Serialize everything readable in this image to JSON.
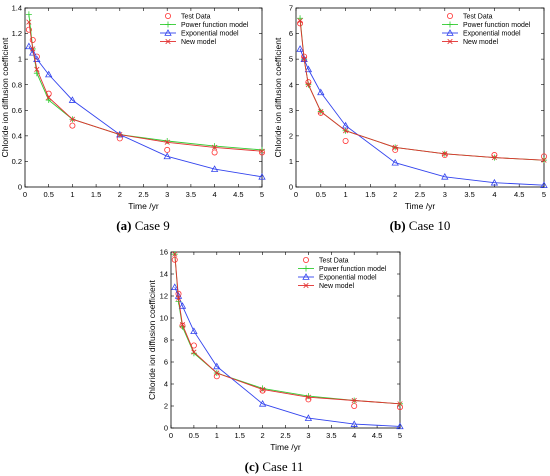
{
  "colors": {
    "test": "#ff3333",
    "power": "#33cc33",
    "exponential": "#3344ee",
    "new": "#e23030"
  },
  "chart_data": [
    {
      "type": "line",
      "caption_letter": "(a)",
      "caption_text": " Case 9",
      "xlabel": "Time /yr",
      "ylabel": "Chloride ion diffusion coefficient",
      "xlim": [
        0,
        5
      ],
      "ylim": [
        0,
        1.4
      ],
      "xticks": [
        "0",
        "0.5",
        "1",
        "1.5",
        "2",
        "2.5",
        "3",
        "3.5",
        "4",
        "4.5",
        "5"
      ],
      "yticks": [
        "0",
        "0.2",
        "0.4",
        "0.6",
        "0.8",
        "1",
        "1.2",
        "1.4"
      ],
      "legend": [
        "Test Data",
        "Power function model",
        "Exponential model",
        "New model"
      ],
      "legend_position": "top-right",
      "series": [
        {
          "name": "Test Data",
          "marker": "circle",
          "x": [
            0.082,
            0.164,
            0.25,
            0.5,
            1,
            2,
            3,
            4,
            5
          ],
          "y": [
            1.23,
            1.15,
            1.02,
            0.73,
            0.48,
            0.38,
            0.29,
            0.27,
            0.27
          ]
        },
        {
          "name": "Power function model",
          "marker": "plus",
          "x": [
            0.082,
            0.164,
            0.25,
            0.5,
            1,
            2,
            3,
            4,
            5
          ],
          "y": [
            1.35,
            1.08,
            0.89,
            0.68,
            0.53,
            0.41,
            0.36,
            0.32,
            0.29
          ]
        },
        {
          "name": "Exponential model",
          "marker": "triangle",
          "x": [
            0.082,
            0.164,
            0.25,
            0.5,
            1,
            2,
            3,
            4,
            5
          ],
          "y": [
            1.1,
            1.05,
            1.0,
            0.88,
            0.68,
            0.41,
            0.24,
            0.14,
            0.08
          ]
        },
        {
          "name": "New model",
          "marker": "x",
          "x": [
            0.082,
            0.164,
            0.25,
            0.5,
            1,
            2,
            3,
            4,
            5
          ],
          "y": [
            1.29,
            1.08,
            0.92,
            0.7,
            0.53,
            0.41,
            0.35,
            0.31,
            0.28
          ]
        }
      ]
    },
    {
      "type": "line",
      "caption_letter": "(b)",
      "caption_text": " Case 10",
      "xlabel": "Time /yr",
      "ylabel": "Chloride ion diffusion coefficient",
      "xlim": [
        0,
        5
      ],
      "ylim": [
        0,
        7
      ],
      "xticks": [
        "0",
        "0.5",
        "1",
        "1.5",
        "2",
        "2.5",
        "3",
        "3.5",
        "4",
        "4.5",
        "5"
      ],
      "yticks": [
        "0",
        "1",
        "2",
        "3",
        "4",
        "5",
        "6",
        "7"
      ],
      "legend": [
        "Test Data",
        "Power function model",
        "Exponential model",
        "New model"
      ],
      "legend_position": "top-right",
      "series": [
        {
          "name": "Test Data",
          "marker": "circle",
          "x": [
            0.082,
            0.164,
            0.25,
            0.5,
            1,
            2,
            3,
            4,
            5
          ],
          "y": [
            6.4,
            5.1,
            4.1,
            2.9,
            1.8,
            1.45,
            1.25,
            1.25,
            1.2
          ]
        },
        {
          "name": "Power function model",
          "marker": "plus",
          "x": [
            0.082,
            0.164,
            0.25,
            0.5,
            1,
            2,
            3,
            4,
            5
          ],
          "y": [
            6.6,
            5.0,
            4.0,
            2.95,
            2.2,
            1.55,
            1.3,
            1.15,
            1.05
          ]
        },
        {
          "name": "Exponential model",
          "marker": "triangle",
          "x": [
            0.082,
            0.164,
            0.25,
            0.5,
            1,
            2,
            3,
            4,
            5
          ],
          "y": [
            5.4,
            5.0,
            4.6,
            3.7,
            2.4,
            0.95,
            0.4,
            0.17,
            0.07
          ]
        },
        {
          "name": "New model",
          "marker": "x",
          "x": [
            0.082,
            0.164,
            0.25,
            0.5,
            1,
            2,
            3,
            4,
            5
          ],
          "y": [
            6.5,
            5.0,
            4.0,
            2.95,
            2.2,
            1.55,
            1.3,
            1.15,
            1.05
          ]
        }
      ]
    },
    {
      "type": "line",
      "caption_letter": "(c)",
      "caption_text": " Case 11",
      "xlabel": "Time /yr",
      "ylabel": "Chloride ion diffusion coefficient",
      "xlim": [
        0,
        5
      ],
      "ylim": [
        0,
        16
      ],
      "xticks": [
        "0",
        "0.5",
        "1",
        "1.5",
        "2",
        "2.5",
        "3",
        "3.5",
        "4",
        "4.5",
        "5"
      ],
      "yticks": [
        "0",
        "2",
        "4",
        "6",
        "8",
        "10",
        "12",
        "14",
        "16"
      ],
      "legend": [
        "Test Data",
        "Power function model",
        "Exponential model",
        "New model"
      ],
      "legend_position": "top-right",
      "series": [
        {
          "name": "Test Data",
          "marker": "circle",
          "x": [
            0.082,
            0.164,
            0.25,
            0.5,
            1,
            2,
            3,
            4,
            5
          ],
          "y": [
            15.3,
            12.2,
            9.3,
            7.5,
            4.7,
            3.4,
            2.6,
            2.0,
            1.9
          ]
        },
        {
          "name": "Power function model",
          "marker": "plus",
          "x": [
            0.082,
            0.164,
            0.25,
            0.5,
            1,
            2,
            3,
            4,
            5
          ],
          "y": [
            15.8,
            11.5,
            9.2,
            6.8,
            5.0,
            3.6,
            2.9,
            2.5,
            2.2
          ]
        },
        {
          "name": "Exponential model",
          "marker": "triangle",
          "x": [
            0.082,
            0.164,
            0.25,
            0.5,
            1,
            2,
            3,
            4,
            5
          ],
          "y": [
            12.8,
            12.0,
            11.1,
            8.8,
            5.6,
            2.2,
            0.9,
            0.35,
            0.15
          ]
        },
        {
          "name": "New model",
          "marker": "x",
          "x": [
            0.082,
            0.164,
            0.25,
            0.5,
            1,
            2,
            3,
            4,
            5
          ],
          "y": [
            15.8,
            11.8,
            9.4,
            6.9,
            5.0,
            3.5,
            2.8,
            2.5,
            2.2
          ]
        }
      ]
    }
  ]
}
